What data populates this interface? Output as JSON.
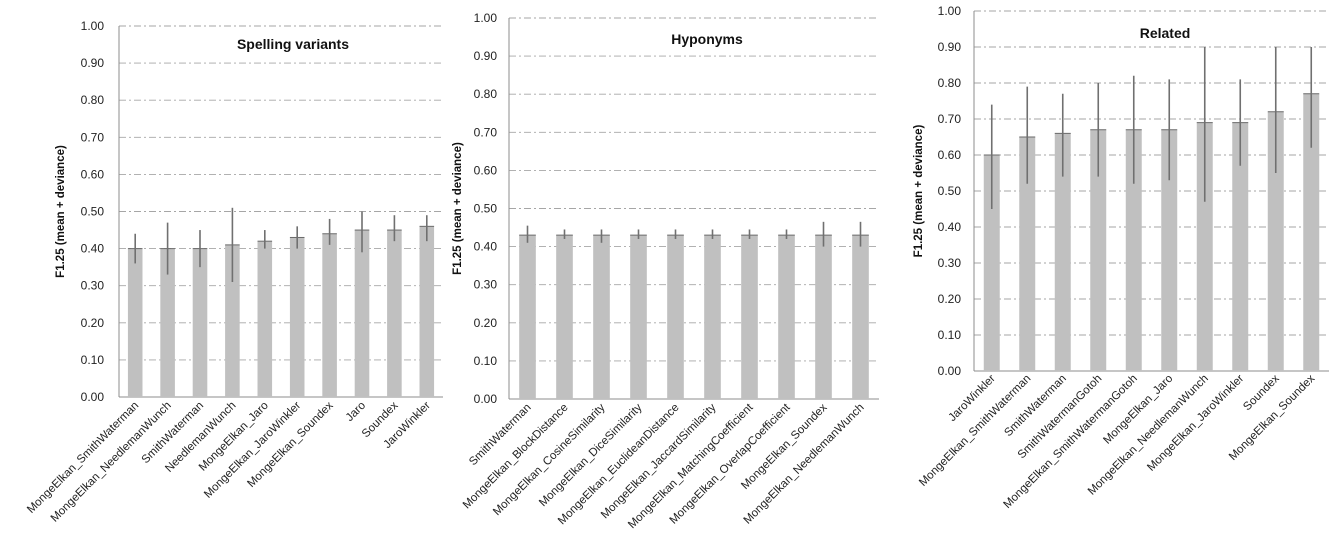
{
  "chart_data": [
    {
      "type": "bar",
      "title": "Spelling variants",
      "ylabel": "F1.25 (mean + deviance)",
      "ylim": [
        0,
        1
      ],
      "yticks": [
        "0.00",
        "0.10",
        "0.20",
        "0.30",
        "0.40",
        "0.50",
        "0.60",
        "0.70",
        "0.80",
        "0.90",
        "1.00"
      ],
      "grid": true,
      "bar_color": "#c0c0c0",
      "error_bar_color": "#707070",
      "categories": [
        "MongeElkan_SmithWaterman",
        "MongeElkan_NeedlemanWunch",
        "SmithWaterman",
        "NeedlemanWunch",
        "MongeElkan_Jaro",
        "MongeElkan_JaroWinkler",
        "MongeElkan_Soundex",
        "Jaro",
        "Soundex",
        "JaroWinkler"
      ],
      "values": [
        0.4,
        0.4,
        0.4,
        0.41,
        0.42,
        0.43,
        0.44,
        0.45,
        0.45,
        0.46
      ],
      "error_low": [
        0.36,
        0.33,
        0.35,
        0.31,
        0.4,
        0.4,
        0.41,
        0.39,
        0.42,
        0.42
      ],
      "error_high": [
        0.44,
        0.47,
        0.45,
        0.51,
        0.45,
        0.46,
        0.48,
        0.5,
        0.49,
        0.49
      ]
    },
    {
      "type": "bar",
      "title": "Hyponyms",
      "ylabel": "F1.25 (mean + deviance)",
      "ylim": [
        0,
        1
      ],
      "yticks": [
        "0.00",
        "0.10",
        "0.20",
        "0.30",
        "0.40",
        "0.50",
        "0.60",
        "0.70",
        "0.80",
        "0.90",
        "1.00"
      ],
      "grid": true,
      "bar_color": "#c0c0c0",
      "error_bar_color": "#707070",
      "categories": [
        "SmithWaterman",
        "MongeElkan_BlockDistance",
        "MongeElkan_CosineSimilarity",
        "MongeElkan_DiceSimilarity",
        "MongeElkan_EuclideanDistance",
        "MongeElkan_JaccardSimilarity",
        "MongeElkan_MatchingCoefficient",
        "MongeElkan_OverlapCoefficient",
        "MongeElkan_Soundex",
        "MongeElkan_NeedlemanWunch"
      ],
      "values": [
        0.43,
        0.43,
        0.43,
        0.43,
        0.43,
        0.43,
        0.43,
        0.43,
        0.43,
        0.43
      ],
      "error_low": [
        0.41,
        0.42,
        0.41,
        0.42,
        0.42,
        0.42,
        0.42,
        0.42,
        0.4,
        0.4
      ],
      "error_high": [
        0.455,
        0.445,
        0.445,
        0.445,
        0.445,
        0.445,
        0.445,
        0.445,
        0.465,
        0.465
      ]
    },
    {
      "type": "bar",
      "title": "Related",
      "ylabel": "F1.25 (mean + deviance)",
      "ylim": [
        0,
        1
      ],
      "yticks": [
        "0.00",
        "0.10",
        "0.20",
        "0.30",
        "0.40",
        "0.50",
        "0.60",
        "0.70",
        "0.80",
        "0.90",
        "1.00"
      ],
      "grid": true,
      "bar_color": "#c0c0c0",
      "error_bar_color": "#707070",
      "categories": [
        "JaroWinkler",
        "MongeElkan_SmithWaterman",
        "SmithWaterman",
        "SmithWatermanGotoh",
        "MongeElkan_SmithWatermanGotoh",
        "MongeElkan_Jaro",
        "MongeElkan_NeedlemanWunch",
        "MongeElkan_JaroWinkler",
        "Soundex",
        "MongeElkan_Soundex"
      ],
      "values": [
        0.6,
        0.65,
        0.66,
        0.67,
        0.67,
        0.67,
        0.69,
        0.69,
        0.72,
        0.77
      ],
      "error_low": [
        0.45,
        0.52,
        0.54,
        0.54,
        0.52,
        0.53,
        0.47,
        0.57,
        0.55,
        0.62
      ],
      "error_high": [
        0.74,
        0.79,
        0.77,
        0.8,
        0.82,
        0.81,
        0.9,
        0.81,
        0.9,
        0.9
      ]
    }
  ]
}
